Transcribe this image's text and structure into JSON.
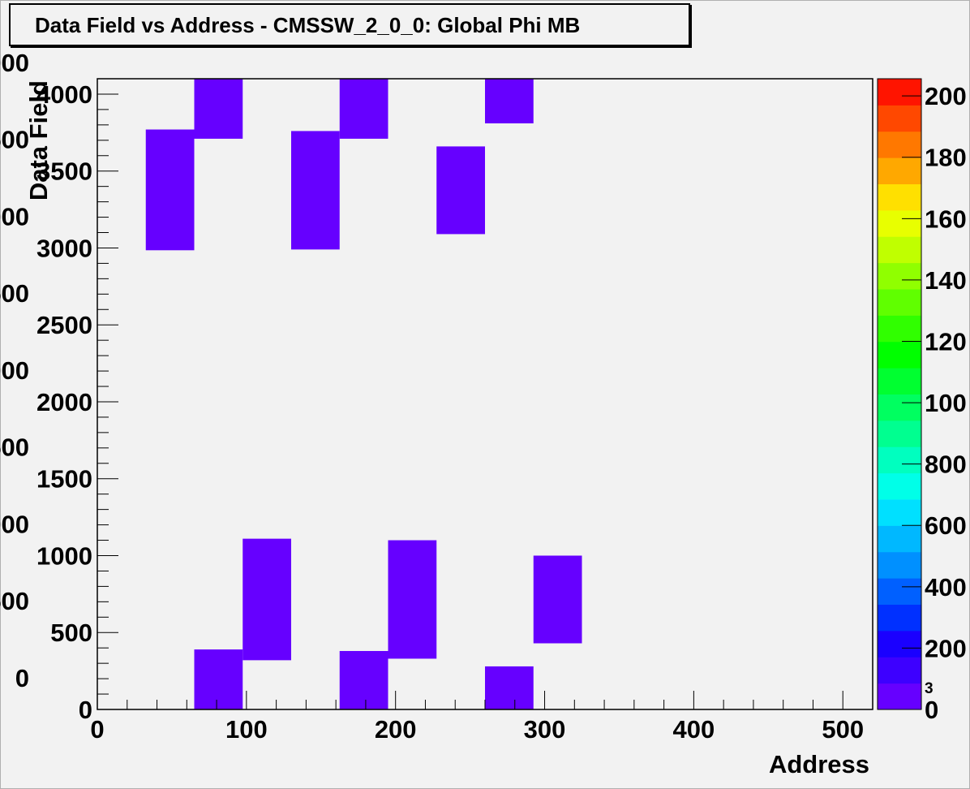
{
  "title": "Data Field vs Address - CMSSW_2_0_0: Global Phi MB",
  "chart_data": {
    "type": "heatmap",
    "title": "Data Field vs Address - CMSSW_2_0_0: Global Phi MB",
    "xlabel": "Address",
    "ylabel": "Data Field",
    "xlim": [
      0,
      520
    ],
    "ylim": [
      0,
      4100
    ],
    "x_ticks": [
      "0",
      "100",
      "200",
      "300",
      "400",
      "500"
    ],
    "y_ticks": [
      "0",
      "500",
      "1000",
      "1500",
      "2000",
      "2500",
      "3000",
      "3500",
      "4000"
    ],
    "x_tick_values": [
      0,
      100,
      200,
      300,
      400,
      500
    ],
    "y_tick_values": [
      0,
      500,
      1000,
      1500,
      2000,
      2500,
      3000,
      3500,
      4000
    ],
    "bin_color": "#6600ff",
    "cells": [
      {
        "x0": 32.5,
        "x1": 65,
        "y0": 2985,
        "y1": 3770
      },
      {
        "x0": 65,
        "x1": 97.5,
        "y0": 3710,
        "y1": 4100
      },
      {
        "x0": 130,
        "x1": 162.5,
        "y0": 2990,
        "y1": 3760
      },
      {
        "x0": 162.5,
        "x1": 195,
        "y0": 3710,
        "y1": 4100
      },
      {
        "x0": 227.5,
        "x1": 260,
        "y0": 3090,
        "y1": 3660
      },
      {
        "x0": 260,
        "x1": 292.5,
        "y0": 3810,
        "y1": 4100
      },
      {
        "x0": 65,
        "x1": 97.5,
        "y0": 0,
        "y1": 390
      },
      {
        "x0": 97.5,
        "x1": 130,
        "y0": 320,
        "y1": 1110
      },
      {
        "x0": 162.5,
        "x1": 195,
        "y0": 0,
        "y1": 380
      },
      {
        "x0": 195,
        "x1": 227.5,
        "y0": 330,
        "y1": 1100
      },
      {
        "x0": 260,
        "x1": 292.5,
        "y0": 0,
        "y1": 280
      },
      {
        "x0": 292.5,
        "x1": 325,
        "y0": 430,
        "y1": 1000
      }
    ],
    "palette": {
      "labels": [
        "0",
        "200",
        "400",
        "600",
        "800",
        "100",
        "120",
        "140",
        "160",
        "180",
        "200"
      ],
      "exponent": "3",
      "colors": [
        "#6600ff",
        "#3d00ff",
        "#1a00ff",
        "#0030ff",
        "#0060ff",
        "#0090ff",
        "#00b8ff",
        "#00e0ff",
        "#00ffe8",
        "#00ffbf",
        "#00ff90",
        "#00ff60",
        "#00ff30",
        "#00ff00",
        "#30ff00",
        "#60ff00",
        "#90ff00",
        "#c0ff00",
        "#e8ff00",
        "#ffe000",
        "#ffa800",
        "#ff7800",
        "#ff4800",
        "#ff1400"
      ]
    },
    "grid": false,
    "legend": "right color palette"
  }
}
